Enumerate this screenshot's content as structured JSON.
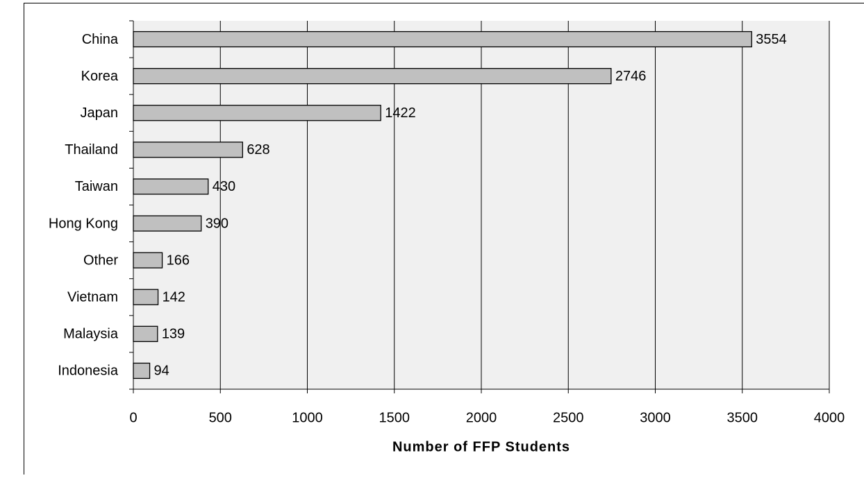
{
  "chart_data": {
    "type": "bar",
    "orientation": "horizontal",
    "x_label": "Number of FFP Students",
    "categories": [
      "China",
      "Korea",
      "Japan",
      "Thailand",
      "Taiwan",
      "Hong Kong",
      "Other",
      "Vietnam",
      "Malaysia",
      "Indonesia"
    ],
    "values": [
      3554,
      2746,
      1422,
      628,
      430,
      390,
      166,
      142,
      139,
      94
    ],
    "color": "#c0c0c0",
    "xlim": [
      0,
      4000
    ],
    "xticks": [
      0,
      500,
      1000,
      1500,
      2000,
      2500,
      3000,
      3500,
      4000
    ],
    "grid": true
  }
}
